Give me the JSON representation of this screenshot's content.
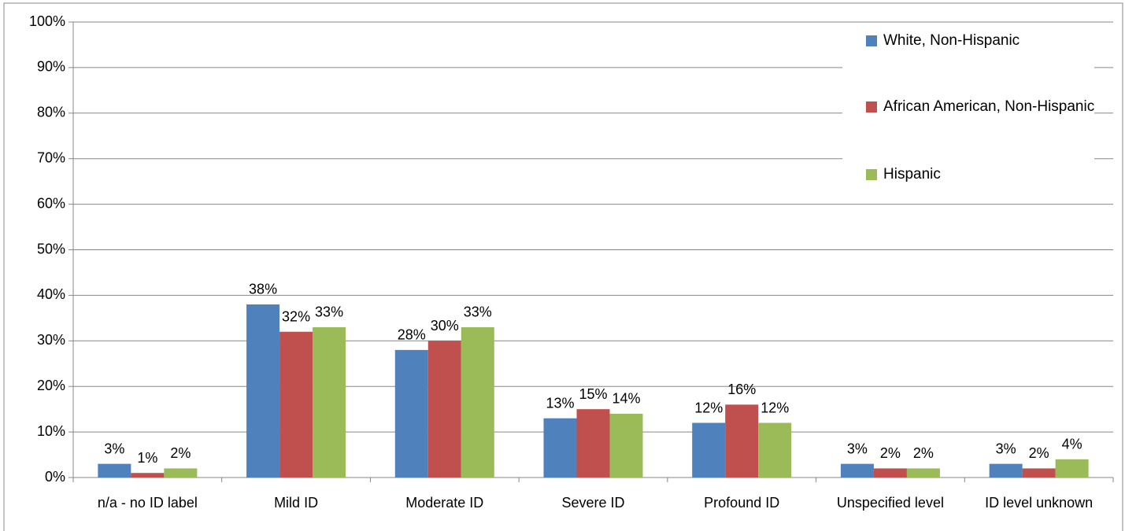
{
  "chart_data": {
    "type": "bar",
    "categories": [
      "n/a - no ID label",
      "Mild ID",
      "Moderate ID",
      "Severe ID",
      "Profound ID",
      "Unspecified level",
      "ID level unknown"
    ],
    "series": [
      {
        "name": "White, Non-Hispanic",
        "color": "#4f81bd",
        "values": [
          3,
          38,
          28,
          13,
          12,
          3,
          3
        ],
        "value_labels": [
          "3%",
          "38%",
          "28%",
          "13%",
          "12%",
          "3%",
          "3%"
        ]
      },
      {
        "name": "African American, Non-Hispanic",
        "color": "#c0504d",
        "values": [
          1,
          32,
          30,
          15,
          16,
          2,
          2
        ],
        "value_labels": [
          "1%",
          "32%",
          "30%",
          "15%",
          "16%",
          "2%",
          "2%"
        ]
      },
      {
        "name": "Hispanic",
        "color": "#9bbb59",
        "values": [
          2,
          33,
          33,
          14,
          12,
          2,
          4
        ],
        "value_labels": [
          "2%",
          "33%",
          "33%",
          "14%",
          "12%",
          "2%",
          "4%"
        ]
      }
    ],
    "ylim": [
      0,
      100
    ],
    "yticks": [
      {
        "value": 0,
        "label": "0%"
      },
      {
        "value": 10,
        "label": "10%"
      },
      {
        "value": 20,
        "label": "20%"
      },
      {
        "value": 30,
        "label": "30%"
      },
      {
        "value": 40,
        "label": "40%"
      },
      {
        "value": 50,
        "label": "50%"
      },
      {
        "value": 60,
        "label": "60%"
      },
      {
        "value": 70,
        "label": "70%"
      },
      {
        "value": 80,
        "label": "80%"
      },
      {
        "value": 90,
        "label": "90%"
      },
      {
        "value": 100,
        "label": "100%"
      }
    ],
    "grid": true,
    "legend": "upper right"
  }
}
